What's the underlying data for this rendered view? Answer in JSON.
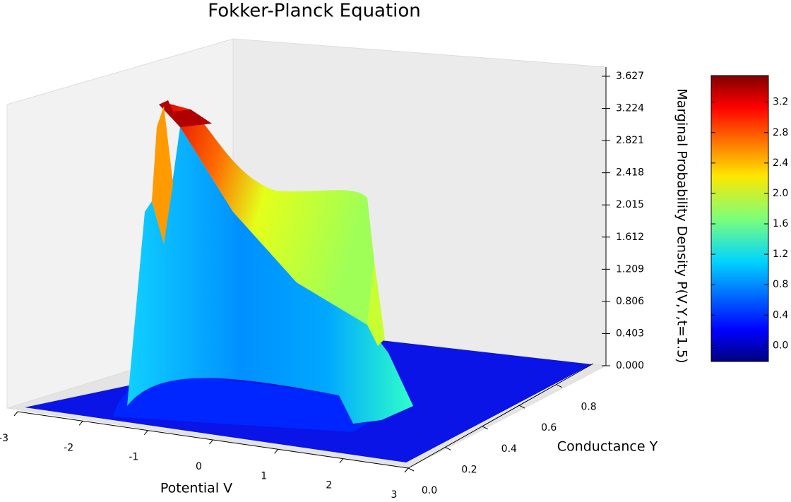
{
  "chart_data": {
    "type": "surface",
    "title": "Fokker-Planck Equation",
    "xlabel": "Potential V",
    "ylabel": "Conductance Y",
    "zlabel": "Marginal Probability Density P(V,Y,t=1.5)",
    "xlim": [
      -3,
      3
    ],
    "xticks": [
      -3,
      -2,
      -1,
      0,
      1,
      2,
      3
    ],
    "ylim": [
      0,
      1
    ],
    "yticks": [
      {
        "value": 0,
        "label": "0.0"
      },
      0.2,
      0.4,
      0.6,
      0.8
    ],
    "zlim": [
      0,
      3.627
    ],
    "zticks": [
      {
        "value": 0,
        "label": "0.000"
      },
      0.403,
      0.806,
      1.209,
      1.612,
      2.015,
      2.418,
      2.821,
      3.224,
      3.627
    ],
    "colormap": "jet",
    "clim": [
      -0.21,
      3.55
    ],
    "cticks": [
      {
        "value": 0,
        "label": "0.0"
      },
      0.4,
      0.8,
      1.2,
      1.6,
      {
        "value": 2,
        "label": "2.0"
      },
      2.4,
      2.8,
      3.2
    ]
  }
}
